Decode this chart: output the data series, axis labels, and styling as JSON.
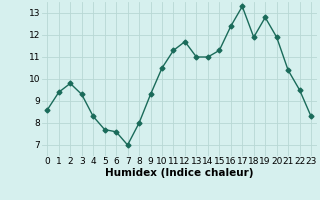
{
  "x": [
    0,
    1,
    2,
    3,
    4,
    5,
    6,
    7,
    8,
    9,
    10,
    11,
    12,
    13,
    14,
    15,
    16,
    17,
    18,
    19,
    20,
    21,
    22,
    23
  ],
  "y": [
    8.6,
    9.4,
    9.8,
    9.3,
    8.3,
    7.7,
    7.6,
    7.0,
    8.0,
    9.3,
    10.5,
    11.3,
    11.7,
    11.0,
    11.0,
    11.3,
    12.4,
    13.3,
    11.9,
    12.8,
    11.9,
    10.4,
    9.5,
    8.3
  ],
  "line_color": "#1a6b5a",
  "marker": "D",
  "marker_size": 2.5,
  "bg_color": "#d6f0ee",
  "grid_color": "#b8d8d4",
  "xlabel": "Humidex (Indice chaleur)",
  "xlim": [
    -0.5,
    23.5
  ],
  "ylim": [
    6.5,
    13.5
  ],
  "yticks": [
    7,
    8,
    9,
    10,
    11,
    12,
    13
  ],
  "xtick_labels": [
    "0",
    "1",
    "2",
    "3",
    "4",
    "5",
    "6",
    "7",
    "8",
    "9",
    "10",
    "11",
    "12",
    "13",
    "14",
    "15",
    "16",
    "17",
    "18",
    "19",
    "20",
    "21",
    "22",
    "23"
  ],
  "xlabel_fontsize": 7.5,
  "tick_fontsize": 6.5,
  "linewidth": 1.0
}
